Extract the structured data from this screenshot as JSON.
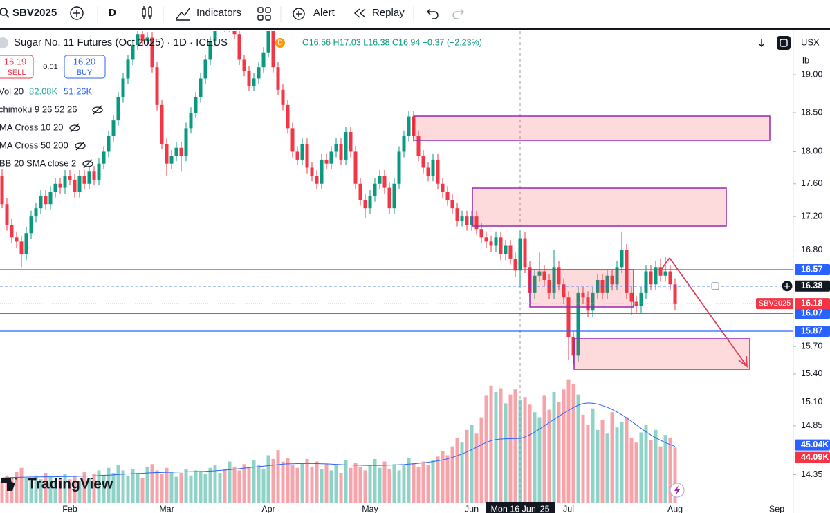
{
  "toolbar": {
    "symbol": "SBV2025",
    "interval": "D",
    "indicators": "Indicators",
    "alert": "Alert",
    "replay": "Replay"
  },
  "legend": {
    "title": "Sugar No. 11 Futures (Oct 2025) · 1D · ICEUS",
    "delay": "D",
    "ohlc": "O16.56 H17.03 L16.38 C16.94 +0.37 (+2.23%)"
  },
  "trade": {
    "sell_price": "16.19",
    "sell": "SELL",
    "spread": "0.01",
    "buy_price": "16.20",
    "buy": "BUY"
  },
  "indicators": {
    "volume": "Vol 20",
    "volume_values": [
      "82.08K",
      "51.26K"
    ],
    "studies": [
      "chimoku 9 26 52 26",
      "MA Cross 10 20",
      "MA Cross 50 200",
      "BB 20 SMA close 2"
    ]
  },
  "scale": {
    "currency": "USX",
    "unit": "lb"
  },
  "watermark": "TradingView",
  "chart_data": {
    "type": "candlestick",
    "log_scale": true,
    "grid": false,
    "up_color": "#089981",
    "down_color": "#f23645",
    "ylim": [
      14.05,
      19.59
    ],
    "yticks": [
      {
        "value": 19,
        "label": "19.00"
      },
      {
        "value": 18.5,
        "label": "18.50"
      },
      {
        "value": 18,
        "label": "18.00"
      },
      {
        "value": 17.6,
        "label": "17.60"
      },
      {
        "value": 17.2,
        "label": "17.20"
      },
      {
        "value": 16.8,
        "label": "16.80"
      },
      {
        "value": 15.7,
        "label": "15.70"
      },
      {
        "value": 15.4,
        "label": "15.40"
      },
      {
        "value": 15.1,
        "label": "15.10"
      },
      {
        "value": 14.85,
        "label": "14.85"
      },
      {
        "value": 14.35,
        "label": "14.35"
      }
    ],
    "xticks": [
      {
        "value": 14,
        "label": "Feb"
      },
      {
        "value": 34,
        "label": "Mar"
      },
      {
        "value": 55,
        "label": "Apr"
      },
      {
        "value": 76,
        "label": "May"
      },
      {
        "value": 97,
        "label": "Jun"
      },
      {
        "value": 117,
        "label": "Jul"
      },
      {
        "value": 139,
        "label": "Aug"
      },
      {
        "value": 160,
        "label": "Sep"
      }
    ],
    "ohlc": [
      [
        17.7,
        17.78,
        17.3,
        17.35
      ],
      [
        17.35,
        17.42,
        17.03,
        17.1
      ],
      [
        17.1,
        17.17,
        16.88,
        16.95
      ],
      [
        16.95,
        17.02,
        16.83,
        16.9
      ],
      [
        16.9,
        16.97,
        16.6,
        16.75
      ],
      [
        16.75,
        17.07,
        16.68,
        17.0
      ],
      [
        17.0,
        17.27,
        16.93,
        17.2
      ],
      [
        17.2,
        17.37,
        17.13,
        17.3
      ],
      [
        17.3,
        17.52,
        17.23,
        17.45
      ],
      [
        17.45,
        17.52,
        17.28,
        17.35
      ],
      [
        17.35,
        17.57,
        17.28,
        17.5
      ],
      [
        17.5,
        17.67,
        17.43,
        17.6
      ],
      [
        17.6,
        17.67,
        17.48,
        17.55
      ],
      [
        17.55,
        17.77,
        17.48,
        17.7
      ],
      [
        17.7,
        17.77,
        17.58,
        17.65
      ],
      [
        17.65,
        17.72,
        17.43,
        17.5
      ],
      [
        17.5,
        17.77,
        17.43,
        17.7
      ],
      [
        17.7,
        17.77,
        17.53,
        17.6
      ],
      [
        17.6,
        17.82,
        17.53,
        17.75
      ],
      [
        17.75,
        17.82,
        17.58,
        17.65
      ],
      [
        17.65,
        17.92,
        17.58,
        17.85
      ],
      [
        17.85,
        18.07,
        17.78,
        18.0
      ],
      [
        18.0,
        18.27,
        17.93,
        18.2
      ],
      [
        18.2,
        18.47,
        18.13,
        18.4
      ],
      [
        18.4,
        18.77,
        18.33,
        18.7
      ],
      [
        18.7,
        19.02,
        18.63,
        18.95
      ],
      [
        18.95,
        19.27,
        18.88,
        19.2
      ],
      [
        19.2,
        19.47,
        19.13,
        19.4
      ],
      [
        19.4,
        19.62,
        19.33,
        19.55
      ],
      [
        19.55,
        19.62,
        19.38,
        19.45
      ],
      [
        19.45,
        19.57,
        19.38,
        19.5
      ],
      [
        19.5,
        19.57,
        19.03,
        19.1
      ],
      [
        19.1,
        19.17,
        18.53,
        18.6
      ],
      [
        18.6,
        18.67,
        18.03,
        18.1
      ],
      [
        18.1,
        18.17,
        17.7,
        17.85
      ],
      [
        17.85,
        18.02,
        17.78,
        17.95
      ],
      [
        17.95,
        18.12,
        17.88,
        18.05
      ],
      [
        18.05,
        18.12,
        17.75,
        17.95
      ],
      [
        17.95,
        18.37,
        17.88,
        18.3
      ],
      [
        18.3,
        18.57,
        18.23,
        18.5
      ],
      [
        18.5,
        18.77,
        18.43,
        18.7
      ],
      [
        18.7,
        19.02,
        18.63,
        18.95
      ],
      [
        18.95,
        19.27,
        18.88,
        19.2
      ],
      [
        19.2,
        19.52,
        19.13,
        19.45
      ],
      [
        19.45,
        19.77,
        19.38,
        19.7
      ],
      [
        19.7,
        19.87,
        19.63,
        19.8
      ],
      [
        19.8,
        19.87,
        19.58,
        19.65
      ],
      [
        19.65,
        19.82,
        19.58,
        19.75
      ],
      [
        19.75,
        19.82,
        19.48,
        19.55
      ],
      [
        19.55,
        19.62,
        19.13,
        19.2
      ],
      [
        19.2,
        19.27,
        18.98,
        19.05
      ],
      [
        19.05,
        19.12,
        18.78,
        18.85
      ],
      [
        18.85,
        19.02,
        18.78,
        18.95
      ],
      [
        18.95,
        19.17,
        18.88,
        19.1
      ],
      [
        19.1,
        19.37,
        19.03,
        19.3
      ],
      [
        19.3,
        19.67,
        19.23,
        19.6
      ],
      [
        19.6,
        19.67,
        19.03,
        19.1
      ],
      [
        19.1,
        19.17,
        18.73,
        18.8
      ],
      [
        18.8,
        18.87,
        18.53,
        18.6
      ],
      [
        18.6,
        18.67,
        18.23,
        18.3
      ],
      [
        18.3,
        18.37,
        17.93,
        18.0
      ],
      [
        18.0,
        18.07,
        17.83,
        17.9
      ],
      [
        17.9,
        18.17,
        17.83,
        18.1
      ],
      [
        18.1,
        18.17,
        17.73,
        17.8
      ],
      [
        17.8,
        17.87,
        17.63,
        17.7
      ],
      [
        17.7,
        17.77,
        17.53,
        17.6
      ],
      [
        17.6,
        17.97,
        17.53,
        17.9
      ],
      [
        17.9,
        17.97,
        17.78,
        17.85
      ],
      [
        17.85,
        18.07,
        17.78,
        18.0
      ],
      [
        18.0,
        18.17,
        17.93,
        18.1
      ],
      [
        18.1,
        18.17,
        17.83,
        17.9
      ],
      [
        17.9,
        18.32,
        17.83,
        18.25
      ],
      [
        18.25,
        18.32,
        17.93,
        18.0
      ],
      [
        18.0,
        18.07,
        17.53,
        17.6
      ],
      [
        17.6,
        17.67,
        17.33,
        17.4
      ],
      [
        17.4,
        17.47,
        17.18,
        17.3
      ],
      [
        17.3,
        17.52,
        17.23,
        17.45
      ],
      [
        17.45,
        17.67,
        17.38,
        17.6
      ],
      [
        17.6,
        17.77,
        17.53,
        17.7
      ],
      [
        17.7,
        17.77,
        17.48,
        17.55
      ],
      [
        17.55,
        17.62,
        17.23,
        17.3
      ],
      [
        17.3,
        17.67,
        17.23,
        17.6
      ],
      [
        17.6,
        18.07,
        17.53,
        18.0
      ],
      [
        18.0,
        18.27,
        17.93,
        18.2
      ],
      [
        18.2,
        18.52,
        18.13,
        18.45
      ],
      [
        18.45,
        18.52,
        18.13,
        18.2
      ],
      [
        18.2,
        18.27,
        17.88,
        17.95
      ],
      [
        17.95,
        18.02,
        17.73,
        17.8
      ],
      [
        17.8,
        17.87,
        17.63,
        17.7
      ],
      [
        17.7,
        17.97,
        17.63,
        17.9
      ],
      [
        17.9,
        17.97,
        17.53,
        17.6
      ],
      [
        17.6,
        17.67,
        17.43,
        17.5
      ],
      [
        17.5,
        17.57,
        17.33,
        17.4
      ],
      [
        17.4,
        17.47,
        17.23,
        17.3
      ],
      [
        17.3,
        17.37,
        17.08,
        17.15
      ],
      [
        17.15,
        17.27,
        17.08,
        17.2
      ],
      [
        17.2,
        17.27,
        17.03,
        17.1
      ],
      [
        17.1,
        17.27,
        17.03,
        17.2
      ],
      [
        17.2,
        17.27,
        16.98,
        17.05
      ],
      [
        17.05,
        17.12,
        16.88,
        16.95
      ],
      [
        16.95,
        17.02,
        16.83,
        16.9
      ],
      [
        16.9,
        16.97,
        16.78,
        16.85
      ],
      [
        16.85,
        17.02,
        16.78,
        16.95
      ],
      [
        16.95,
        17.02,
        16.68,
        16.75
      ],
      [
        16.75,
        16.92,
        16.68,
        16.85
      ],
      [
        16.85,
        16.92,
        16.63,
        16.7
      ],
      [
        16.7,
        16.77,
        16.49,
        16.56
      ],
      [
        16.56,
        17.03,
        16.38,
        16.94
      ],
      [
        16.94,
        17.01,
        16.53,
        16.6
      ],
      [
        16.6,
        16.67,
        16.23,
        16.3
      ],
      [
        16.3,
        16.57,
        16.23,
        16.5
      ],
      [
        16.5,
        16.77,
        16.43,
        16.55
      ],
      [
        16.55,
        16.62,
        16.38,
        16.45
      ],
      [
        16.45,
        16.52,
        16.23,
        16.3
      ],
      [
        16.3,
        16.8,
        16.23,
        16.6
      ],
      [
        16.6,
        16.67,
        16.33,
        16.4
      ],
      [
        16.4,
        16.47,
        16.18,
        16.25
      ],
      [
        16.25,
        16.32,
        15.55,
        15.8
      ],
      [
        15.8,
        15.87,
        15.5,
        15.6
      ],
      [
        15.6,
        16.37,
        15.53,
        16.3
      ],
      [
        16.3,
        16.37,
        16.18,
        16.25
      ],
      [
        16.25,
        16.32,
        16.03,
        16.1
      ],
      [
        16.1,
        16.37,
        16.03,
        16.3
      ],
      [
        16.3,
        16.52,
        16.23,
        16.45
      ],
      [
        16.45,
        16.52,
        16.23,
        16.3
      ],
      [
        16.3,
        16.57,
        16.23,
        16.5
      ],
      [
        16.5,
        16.57,
        16.33,
        16.4
      ],
      [
        16.4,
        16.67,
        16.33,
        16.6
      ],
      [
        16.6,
        17.02,
        16.53,
        16.8
      ],
      [
        16.8,
        16.87,
        16.23,
        16.3
      ],
      [
        16.3,
        16.37,
        16.05,
        16.2
      ],
      [
        16.2,
        16.27,
        16.08,
        16.15
      ],
      [
        16.15,
        16.37,
        16.08,
        16.3
      ],
      [
        16.3,
        16.62,
        16.23,
        16.55
      ],
      [
        16.55,
        16.62,
        16.33,
        16.4
      ],
      [
        16.4,
        16.67,
        16.33,
        16.6
      ],
      [
        16.6,
        16.7,
        16.43,
        16.5
      ],
      [
        16.5,
        16.72,
        16.43,
        16.55
      ],
      [
        16.55,
        16.62,
        16.33,
        16.4
      ],
      [
        16.4,
        16.47,
        16.11,
        16.18
      ]
    ],
    "volume": {
      "vlim": [
        0,
        100
      ],
      "up_color": "#8fd3c8",
      "down_color": "#f6a3aa",
      "last_label": "44.09K",
      "values": [
        18,
        22,
        20,
        25,
        28,
        20,
        18,
        22,
        19,
        24,
        21,
        17,
        20,
        23,
        19,
        22,
        18,
        25,
        20,
        23,
        26,
        22,
        28,
        24,
        30,
        26,
        22,
        27,
        24,
        20,
        29,
        31,
        26,
        23,
        28,
        25,
        21,
        24,
        27,
        22,
        26,
        25,
        23,
        28,
        30,
        24,
        27,
        33,
        29,
        26,
        31,
        28,
        34,
        30,
        27,
        38,
        35,
        42,
        33,
        36,
        30,
        28,
        32,
        35,
        29,
        33,
        27,
        31,
        26,
        30,
        24,
        34,
        28,
        32,
        29,
        26,
        30,
        35,
        28,
        33,
        27,
        31,
        26,
        30,
        36,
        32,
        29,
        33,
        30,
        34,
        37,
        41,
        38,
        45,
        52,
        48,
        58,
        62,
        55,
        68,
        85,
        93,
        88,
        91,
        79,
        86,
        90,
        82.08,
        84,
        78,
        72,
        68,
        85,
        74,
        88,
        80,
        90,
        98,
        94,
        86,
        70,
        62,
        75,
        58,
        66,
        55,
        72,
        60,
        64,
        68,
        52,
        48,
        56,
        62,
        50,
        58,
        45,
        54,
        52,
        44.09
      ],
      "ma": {
        "color": "#2962ff",
        "last_label": "45.04K",
        "values": [
          20,
          20.2,
          20.4,
          20.5,
          20.6,
          20.7,
          20.8,
          20.8,
          20.9,
          21,
          21,
          21,
          21.1,
          21.2,
          21.2,
          21.3,
          21.4,
          21.5,
          21.6,
          21.7,
          21.9,
          22.1,
          22.3,
          22.5,
          22.8,
          23,
          23.2,
          23.4,
          23.6,
          23.8,
          24,
          24.2,
          24.3,
          24.4,
          24.5,
          24.6,
          24.7,
          24.8,
          24.9,
          25,
          25.1,
          25.2,
          25.3,
          25.5,
          25.7,
          26,
          26.3,
          26.6,
          27,
          27.4,
          27.8,
          28.2,
          28.6,
          29,
          29.4,
          29.8,
          30.2,
          30.6,
          31,
          31.2,
          31.3,
          31.4,
          31.5,
          31.5,
          31.5,
          31.4,
          31.3,
          31.2,
          31,
          30.8,
          30.6,
          30.4,
          30.3,
          30.2,
          30.1,
          30,
          30,
          30,
          30,
          30.1,
          30.2,
          30.3,
          30.5,
          30.7,
          31,
          31.3,
          31.6,
          32,
          32.5,
          33,
          33.6,
          34.3,
          35.2,
          36.3,
          37.6,
          39,
          40.6,
          42.4,
          44.3,
          46.3,
          48.2,
          49.6,
          50.4,
          50.8,
          51,
          51.1,
          51.2,
          51.26,
          52.5,
          54.2,
          56.3,
          58.7,
          61.2,
          63.8,
          66.3,
          68.8,
          71.2,
          73.5,
          75.7,
          77.6,
          78.8,
          79.3,
          79.1,
          78.4,
          77.3,
          75.9,
          74.2,
          72.2,
          70,
          67.5,
          64.8,
          62,
          59.2,
          56.5,
          54,
          51.8,
          49.8,
          48,
          46.4,
          45.04
        ]
      }
    },
    "levels": [
      16.57,
      16.07,
      15.87
    ],
    "level_color": "#2962ff",
    "last_price": {
      "name": "SBV2025",
      "value": 16.18,
      "color": "#f23645"
    },
    "crosshair": {
      "label": "Mon 16 Jun '25",
      "index": 107,
      "price": 16.38
    }
  }
}
